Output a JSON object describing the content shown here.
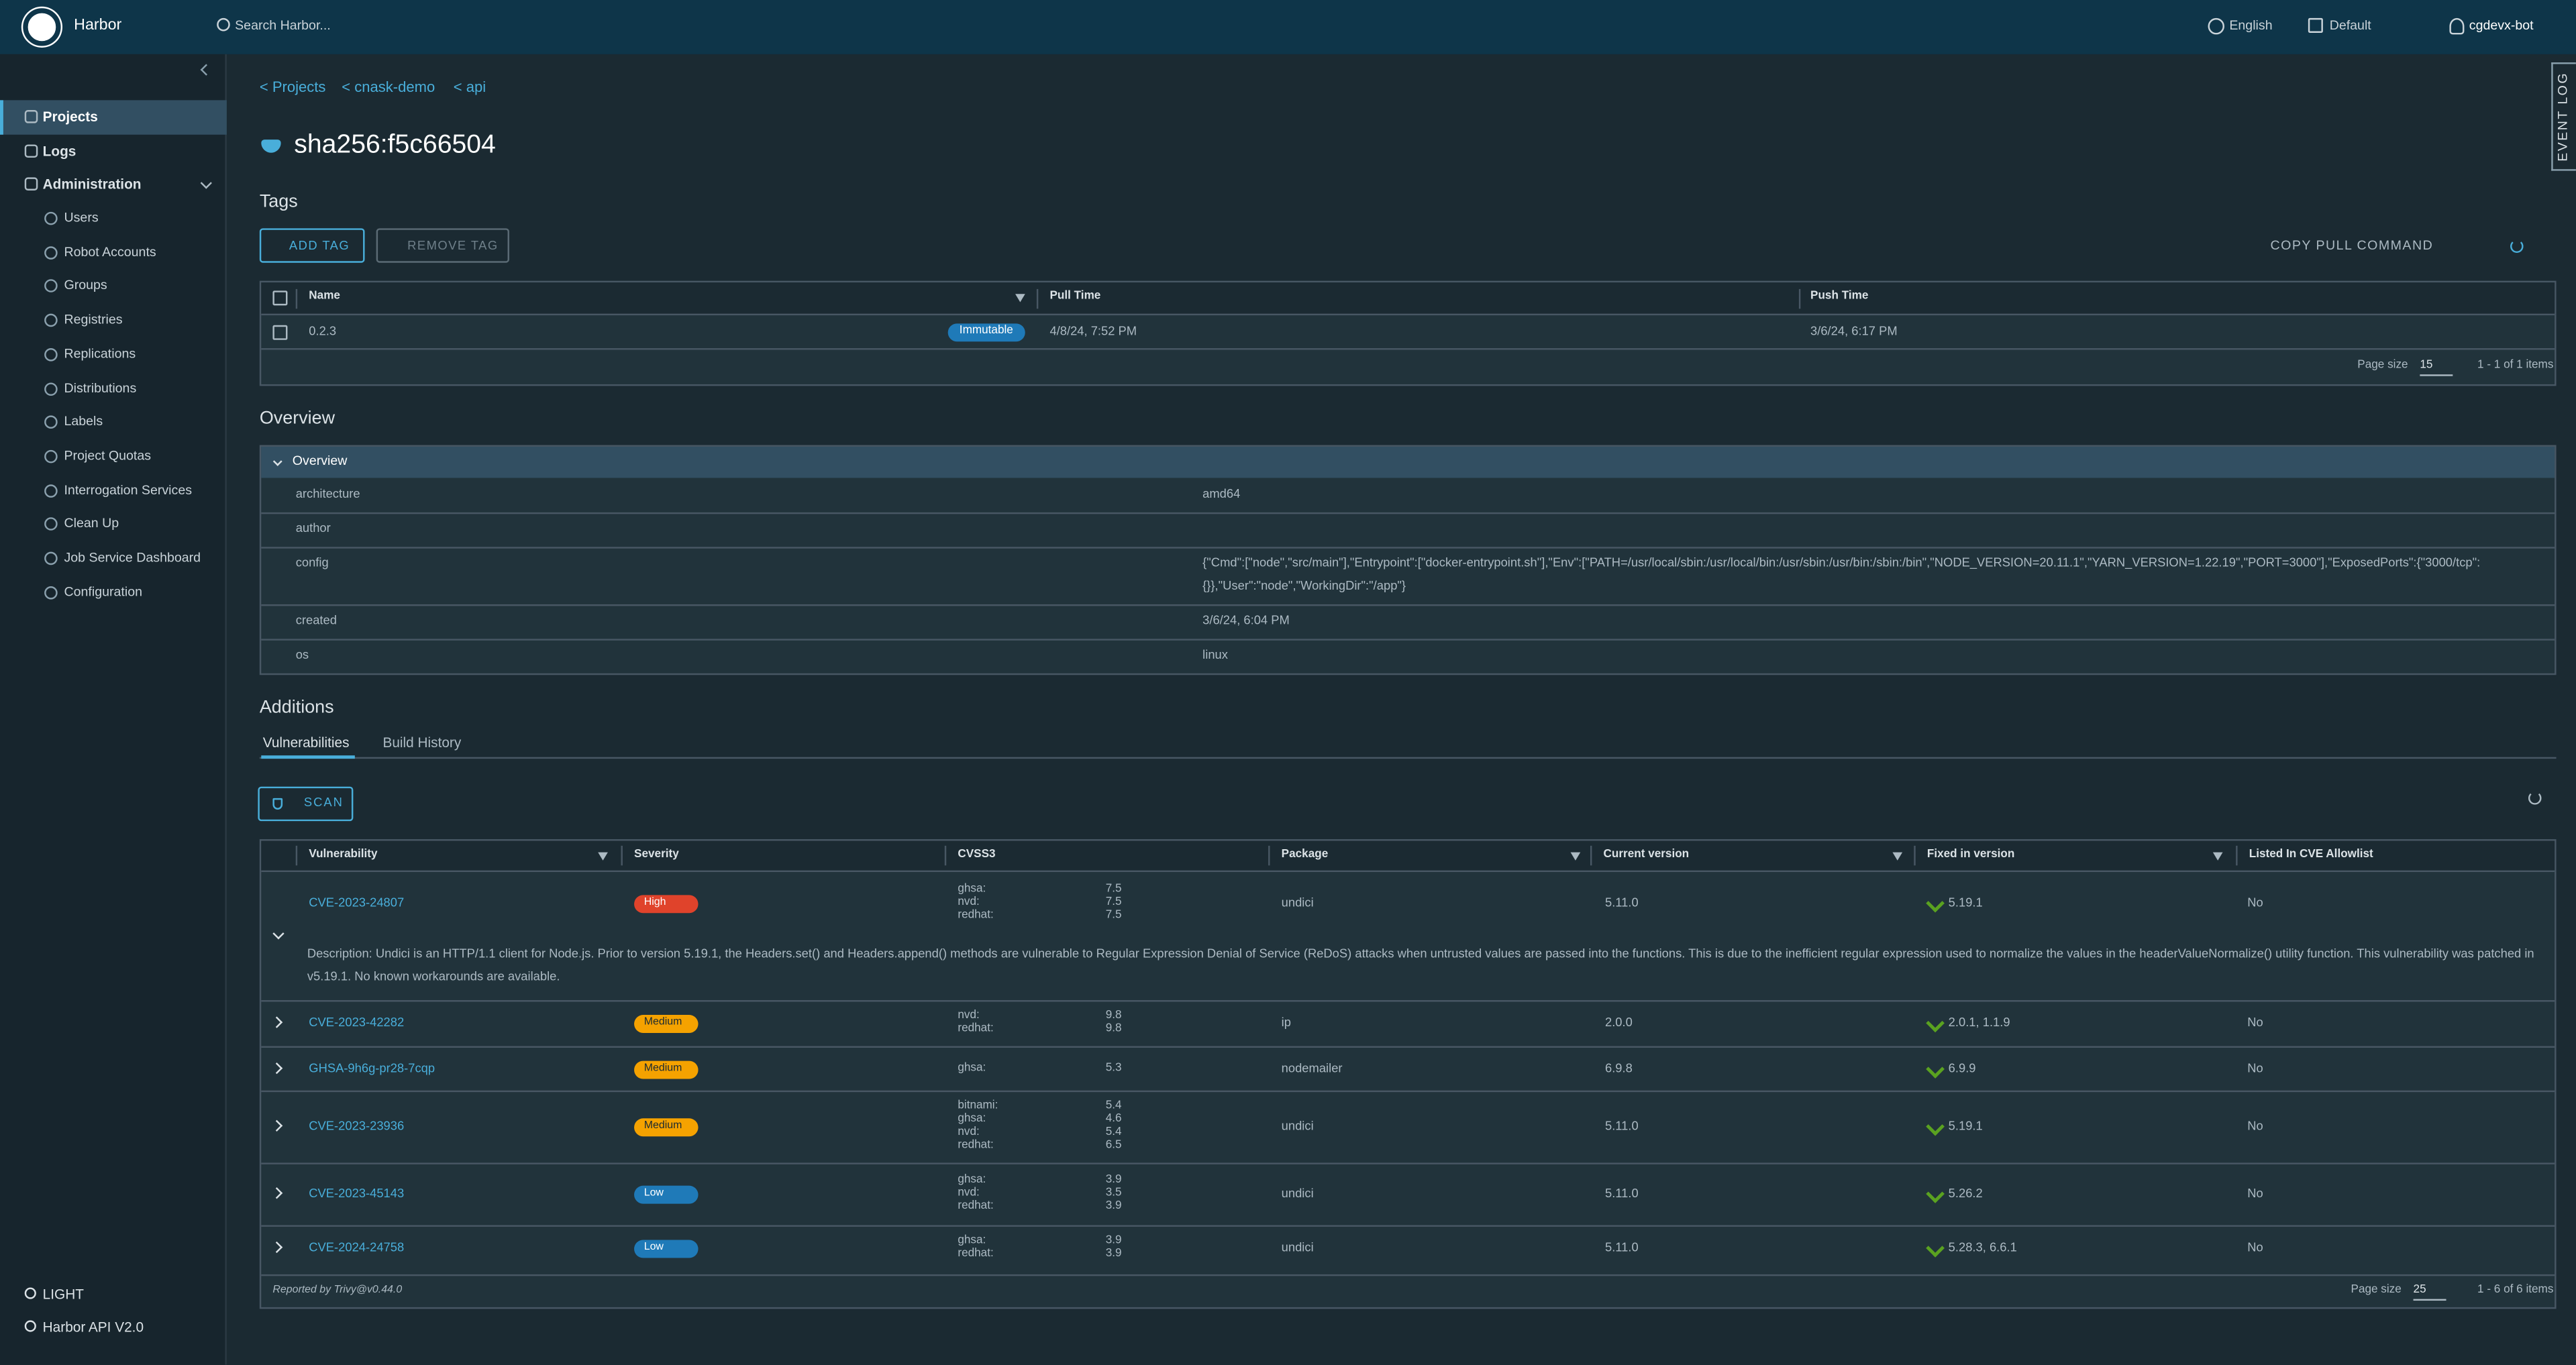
{
  "header": {
    "brand": "Harbor",
    "search_placeholder": "Search Harbor...",
    "language": "English",
    "scope": "Default",
    "user": "cgdevx-bot"
  },
  "sidebar": {
    "items": [
      "Projects",
      "Logs",
      "Administration"
    ],
    "admin_items": [
      "Users",
      "Robot Accounts",
      "Groups",
      "Registries",
      "Replications",
      "Distributions",
      "Labels",
      "Project Quotas",
      "Interrogation Services",
      "Clean Up",
      "Job Service Dashboard",
      "Configuration"
    ],
    "theme": "LIGHT",
    "api": "Harbor API V2.0"
  },
  "event_log": "EVENT LOG",
  "breadcrumb": [
    "< Projects",
    "< cnask-demo",
    "< api"
  ],
  "title": "sha256:f5c66504",
  "tags": {
    "heading": "Tags",
    "add": "ADD TAG",
    "remove": "REMOVE TAG",
    "copy": "COPY PULL COMMAND",
    "columns": [
      "Name",
      "Pull Time",
      "Push Time"
    ],
    "rows": [
      {
        "name": "0.2.3",
        "badge": "Immutable",
        "pull": "4/8/24, 7:52 PM",
        "push": "3/6/24, 6:17 PM"
      }
    ],
    "page_size_label": "Page size",
    "page_size": "15",
    "range": "1 - 1 of 1 items"
  },
  "overview": {
    "heading": "Overview",
    "panel": "Overview",
    "rows": [
      [
        "architecture",
        "amd64"
      ],
      [
        "author",
        ""
      ],
      [
        "config",
        "{\"Cmd\":[\"node\",\"src/main\"],\"Entrypoint\":[\"docker-entrypoint.sh\"],\"Env\":[\"PATH=/usr/local/sbin:/usr/local/bin:/usr/sbin:/usr/bin:/sbin:/bin\",\"NODE_VERSION=20.11.1\",\"YARN_VERSION=1.22.19\",\"PORT=3000\"],\"ExposedPorts\":{\"3000/tcp\":{}},\"User\":\"node\",\"WorkingDir\":\"/app\"}"
      ],
      [
        "created",
        "3/6/24, 6:04 PM"
      ],
      [
        "os",
        "linux"
      ]
    ]
  },
  "additions": {
    "heading": "Additions",
    "tabs": [
      "Vulnerabilities",
      "Build History"
    ],
    "scan": "SCAN",
    "columns": [
      "Vulnerability",
      "Severity",
      "CVSS3",
      "Package",
      "Current version",
      "Fixed in version",
      "Listed In CVE Allowlist"
    ],
    "rows": [
      {
        "id": "CVE-2023-24807",
        "severity": "High",
        "color": "#e0432b",
        "cvss": [
          [
            "ghsa:",
            7.5
          ],
          [
            "nvd:",
            7.5
          ],
          [
            "redhat:",
            7.5
          ]
        ],
        "package": "undici",
        "current": "5.11.0",
        "fixed": "5.19.1",
        "allowlisted": "No",
        "description": "Description: Undici is an HTTP/1.1 client for Node.js. Prior to version 5.19.1, the Headers.set() and Headers.append() methods are vulnerable to Regular Expression Denial of Service (ReDoS) attacks when untrusted values are passed into the functions. This is due to the inefficient regular expression used to normalize the values in the headerValueNormalize() utility function. This vulnerability was patched in v5.19.1. No known workarounds are available."
      },
      {
        "id": "CVE-2023-42282",
        "severity": "Medium",
        "color": "#f5a200",
        "cvss": [
          [
            "nvd:",
            9.8
          ],
          [
            "redhat:",
            9.8
          ]
        ],
        "package": "ip",
        "current": "2.0.0",
        "fixed": "2.0.1, 1.1.9",
        "allowlisted": "No"
      },
      {
        "id": "GHSA-9h6g-pr28-7cqp",
        "severity": "Medium",
        "color": "#f5a200",
        "cvss": [
          [
            "ghsa:",
            5.3
          ]
        ],
        "package": "nodemailer",
        "current": "6.9.8",
        "fixed": "6.9.9",
        "allowlisted": "No"
      },
      {
        "id": "CVE-2023-23936",
        "severity": "Medium",
        "color": "#f5a200",
        "cvss": [
          [
            "bitnami:",
            5.4
          ],
          [
            "ghsa:",
            4.6
          ],
          [
            "nvd:",
            5.4
          ],
          [
            "redhat:",
            6.5
          ]
        ],
        "package": "undici",
        "current": "5.11.0",
        "fixed": "5.19.1",
        "allowlisted": "No"
      },
      {
        "id": "CVE-2023-45143",
        "severity": "Low",
        "color": "#1f7ab8",
        "cvss": [
          [
            "ghsa:",
            3.9
          ],
          [
            "nvd:",
            3.5
          ],
          [
            "redhat:",
            3.9
          ]
        ],
        "package": "undici",
        "current": "5.11.0",
        "fixed": "5.26.2",
        "allowlisted": "No"
      },
      {
        "id": "CVE-2024-24758",
        "severity": "Low",
        "color": "#1f7ab8",
        "cvss": [
          [
            "ghsa:",
            3.9
          ],
          [
            "redhat:",
            3.9
          ]
        ],
        "package": "undici",
        "current": "5.11.0",
        "fixed": "5.28.3, 6.6.1",
        "allowlisted": "No"
      }
    ],
    "reported_by": "Reported by Trivy@v0.44.0",
    "page_size_label": "Page size",
    "page_size": "25",
    "range": "1 - 6 of 6 items"
  }
}
